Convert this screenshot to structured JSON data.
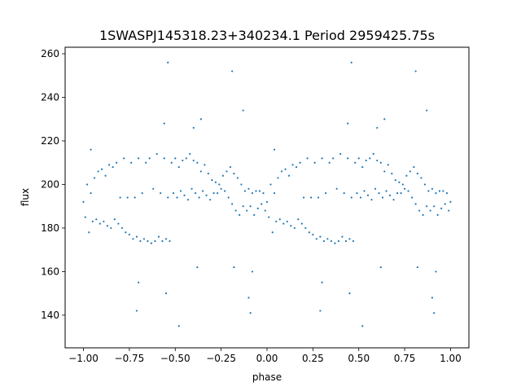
{
  "chart_data": {
    "type": "scatter",
    "title": "1SWASPJ145318.23+340234.1 Period 2959425.75s",
    "xlabel": "phase",
    "ylabel": "flux",
    "xlim": [
      -1.1,
      1.1
    ],
    "ylim": [
      125,
      263
    ],
    "xticks": [
      -1.0,
      -0.75,
      -0.5,
      -0.25,
      0.0,
      0.25,
      0.5,
      0.75,
      1.0
    ],
    "xtick_labels": [
      "−1.00",
      "−0.75",
      "−0.50",
      "−0.25",
      "0.00",
      "0.25",
      "0.50",
      "0.75",
      "1.00"
    ],
    "yticks": [
      140,
      160,
      180,
      200,
      220,
      240,
      260
    ],
    "ytick_labels": [
      "140",
      "160",
      "180",
      "200",
      "220",
      "240",
      "260"
    ],
    "grid": false,
    "legend": "none",
    "point_color": "#1f77b4",
    "series": [
      {
        "values": [
          {
            "x": -1.0,
            "y": 192
          },
          {
            "x": -0.99,
            "y": 185
          },
          {
            "x": -0.98,
            "y": 200
          },
          {
            "x": -0.97,
            "y": 178
          },
          {
            "x": -0.96,
            "y": 196
          },
          {
            "x": -0.95,
            "y": 183
          },
          {
            "x": -0.94,
            "y": 203
          },
          {
            "x": -0.93,
            "y": 184
          },
          {
            "x": -0.92,
            "y": 206
          },
          {
            "x": -0.91,
            "y": 182
          },
          {
            "x": -0.9,
            "y": 207
          },
          {
            "x": -0.89,
            "y": 183
          },
          {
            "x": -0.88,
            "y": 204
          },
          {
            "x": -0.87,
            "y": 181
          },
          {
            "x": -0.86,
            "y": 209
          },
          {
            "x": -0.85,
            "y": 180
          },
          {
            "x": -0.84,
            "y": 208
          },
          {
            "x": -0.83,
            "y": 184
          },
          {
            "x": -0.82,
            "y": 210
          },
          {
            "x": -0.81,
            "y": 182
          },
          {
            "x": -0.8,
            "y": 194
          },
          {
            "x": -0.79,
            "y": 180
          },
          {
            "x": -0.78,
            "y": 212
          },
          {
            "x": -0.77,
            "y": 178
          },
          {
            "x": -0.76,
            "y": 194
          },
          {
            "x": -0.75,
            "y": 177
          },
          {
            "x": -0.74,
            "y": 210
          },
          {
            "x": -0.73,
            "y": 175
          },
          {
            "x": -0.72,
            "y": 194
          },
          {
            "x": -0.71,
            "y": 176
          },
          {
            "x": -0.7,
            "y": 212
          },
          {
            "x": -0.69,
            "y": 174
          },
          {
            "x": -0.68,
            "y": 196
          },
          {
            "x": -0.67,
            "y": 175
          },
          {
            "x": -0.66,
            "y": 210
          },
          {
            "x": -0.65,
            "y": 174
          },
          {
            "x": -0.64,
            "y": 212
          },
          {
            "x": -0.63,
            "y": 173
          },
          {
            "x": -0.62,
            "y": 198
          },
          {
            "x": -0.61,
            "y": 174
          },
          {
            "x": -0.6,
            "y": 214
          },
          {
            "x": -0.59,
            "y": 176
          },
          {
            "x": -0.58,
            "y": 196
          },
          {
            "x": -0.57,
            "y": 174
          },
          {
            "x": -0.56,
            "y": 212
          },
          {
            "x": -0.55,
            "y": 175
          },
          {
            "x": -0.54,
            "y": 194
          },
          {
            "x": -0.53,
            "y": 174
          },
          {
            "x": -0.52,
            "y": 210
          },
          {
            "x": -0.51,
            "y": 196
          },
          {
            "x": -0.5,
            "y": 212
          },
          {
            "x": -0.49,
            "y": 194
          },
          {
            "x": -0.48,
            "y": 208
          },
          {
            "x": -0.47,
            "y": 197
          },
          {
            "x": -0.46,
            "y": 211
          },
          {
            "x": -0.45,
            "y": 195
          },
          {
            "x": -0.44,
            "y": 212
          },
          {
            "x": -0.43,
            "y": 193
          },
          {
            "x": -0.42,
            "y": 214
          },
          {
            "x": -0.41,
            "y": 198
          },
          {
            "x": -0.4,
            "y": 211
          },
          {
            "x": -0.39,
            "y": 196
          },
          {
            "x": -0.38,
            "y": 210
          },
          {
            "x": -0.37,
            "y": 194
          },
          {
            "x": -0.36,
            "y": 206
          },
          {
            "x": -0.35,
            "y": 197
          },
          {
            "x": -0.34,
            "y": 209
          },
          {
            "x": -0.33,
            "y": 195
          },
          {
            "x": -0.32,
            "y": 205
          },
          {
            "x": -0.31,
            "y": 193
          },
          {
            "x": -0.3,
            "y": 202
          },
          {
            "x": -0.29,
            "y": 196
          },
          {
            "x": -0.28,
            "y": 201
          },
          {
            "x": -0.27,
            "y": 196
          },
          {
            "x": -0.26,
            "y": 200
          },
          {
            "x": -0.25,
            "y": 198
          },
          {
            "x": -0.24,
            "y": 204
          },
          {
            "x": -0.23,
            "y": 197
          },
          {
            "x": -0.22,
            "y": 206
          },
          {
            "x": -0.21,
            "y": 194
          },
          {
            "x": -0.2,
            "y": 208
          },
          {
            "x": -0.19,
            "y": 191
          },
          {
            "x": -0.18,
            "y": 205
          },
          {
            "x": -0.17,
            "y": 188
          },
          {
            "x": -0.16,
            "y": 203
          },
          {
            "x": -0.15,
            "y": 186
          },
          {
            "x": -0.14,
            "y": 200
          },
          {
            "x": -0.13,
            "y": 190
          },
          {
            "x": -0.12,
            "y": 197
          },
          {
            "x": -0.11,
            "y": 188
          },
          {
            "x": -0.1,
            "y": 198
          },
          {
            "x": -0.09,
            "y": 190
          },
          {
            "x": -0.08,
            "y": 196
          },
          {
            "x": -0.07,
            "y": 186
          },
          {
            "x": -0.06,
            "y": 197
          },
          {
            "x": -0.05,
            "y": 189
          },
          {
            "x": -0.04,
            "y": 197
          },
          {
            "x": -0.03,
            "y": 191
          },
          {
            "x": -0.02,
            "y": 196
          },
          {
            "x": -0.01,
            "y": 188
          },
          {
            "x": 0.0,
            "y": 192
          },
          {
            "x": 0.01,
            "y": 185
          },
          {
            "x": 0.02,
            "y": 200
          },
          {
            "x": 0.03,
            "y": 178
          },
          {
            "x": 0.04,
            "y": 196
          },
          {
            "x": 0.05,
            "y": 183
          },
          {
            "x": 0.06,
            "y": 203
          },
          {
            "x": 0.07,
            "y": 184
          },
          {
            "x": 0.08,
            "y": 206
          },
          {
            "x": 0.09,
            "y": 182
          },
          {
            "x": 0.1,
            "y": 207
          },
          {
            "x": 0.11,
            "y": 183
          },
          {
            "x": 0.12,
            "y": 204
          },
          {
            "x": 0.13,
            "y": 181
          },
          {
            "x": 0.14,
            "y": 209
          },
          {
            "x": 0.15,
            "y": 180
          },
          {
            "x": 0.16,
            "y": 208
          },
          {
            "x": 0.17,
            "y": 184
          },
          {
            "x": 0.18,
            "y": 210
          },
          {
            "x": 0.19,
            "y": 182
          },
          {
            "x": 0.2,
            "y": 194
          },
          {
            "x": 0.21,
            "y": 180
          },
          {
            "x": 0.22,
            "y": 212
          },
          {
            "x": 0.23,
            "y": 178
          },
          {
            "x": 0.24,
            "y": 194
          },
          {
            "x": 0.25,
            "y": 177
          },
          {
            "x": 0.26,
            "y": 210
          },
          {
            "x": 0.27,
            "y": 175
          },
          {
            "x": 0.28,
            "y": 194
          },
          {
            "x": 0.29,
            "y": 176
          },
          {
            "x": 0.3,
            "y": 212
          },
          {
            "x": 0.31,
            "y": 174
          },
          {
            "x": 0.32,
            "y": 196
          },
          {
            "x": 0.33,
            "y": 175
          },
          {
            "x": 0.34,
            "y": 210
          },
          {
            "x": 0.35,
            "y": 174
          },
          {
            "x": 0.36,
            "y": 212
          },
          {
            "x": 0.37,
            "y": 173
          },
          {
            "x": 0.38,
            "y": 198
          },
          {
            "x": 0.39,
            "y": 174
          },
          {
            "x": 0.4,
            "y": 214
          },
          {
            "x": 0.41,
            "y": 176
          },
          {
            "x": 0.42,
            "y": 196
          },
          {
            "x": 0.43,
            "y": 174
          },
          {
            "x": 0.44,
            "y": 212
          },
          {
            "x": 0.45,
            "y": 175
          },
          {
            "x": 0.46,
            "y": 194
          },
          {
            "x": 0.47,
            "y": 174
          },
          {
            "x": 0.48,
            "y": 210
          },
          {
            "x": 0.49,
            "y": 196
          },
          {
            "x": 0.5,
            "y": 212
          },
          {
            "x": 0.51,
            "y": 194
          },
          {
            "x": 0.52,
            "y": 208
          },
          {
            "x": 0.53,
            "y": 197
          },
          {
            "x": 0.54,
            "y": 211
          },
          {
            "x": 0.55,
            "y": 195
          },
          {
            "x": 0.56,
            "y": 212
          },
          {
            "x": 0.57,
            "y": 193
          },
          {
            "x": 0.58,
            "y": 214
          },
          {
            "x": 0.59,
            "y": 198
          },
          {
            "x": 0.6,
            "y": 211
          },
          {
            "x": 0.61,
            "y": 196
          },
          {
            "x": 0.62,
            "y": 210
          },
          {
            "x": 0.63,
            "y": 194
          },
          {
            "x": 0.64,
            "y": 206
          },
          {
            "x": 0.65,
            "y": 197
          },
          {
            "x": 0.66,
            "y": 209
          },
          {
            "x": 0.67,
            "y": 195
          },
          {
            "x": 0.68,
            "y": 205
          },
          {
            "x": 0.69,
            "y": 193
          },
          {
            "x": 0.7,
            "y": 202
          },
          {
            "x": 0.71,
            "y": 196
          },
          {
            "x": 0.72,
            "y": 201
          },
          {
            "x": 0.73,
            "y": 196
          },
          {
            "x": 0.74,
            "y": 200
          },
          {
            "x": 0.75,
            "y": 198
          },
          {
            "x": 0.76,
            "y": 204
          },
          {
            "x": 0.77,
            "y": 197
          },
          {
            "x": 0.78,
            "y": 206
          },
          {
            "x": 0.79,
            "y": 194
          },
          {
            "x": 0.8,
            "y": 208
          },
          {
            "x": 0.81,
            "y": 191
          },
          {
            "x": 0.82,
            "y": 205
          },
          {
            "x": 0.83,
            "y": 188
          },
          {
            "x": 0.84,
            "y": 203
          },
          {
            "x": 0.85,
            "y": 186
          },
          {
            "x": 0.86,
            "y": 200
          },
          {
            "x": 0.87,
            "y": 190
          },
          {
            "x": 0.88,
            "y": 197
          },
          {
            "x": 0.89,
            "y": 188
          },
          {
            "x": 0.9,
            "y": 198
          },
          {
            "x": 0.91,
            "y": 190
          },
          {
            "x": 0.92,
            "y": 196
          },
          {
            "x": 0.93,
            "y": 186
          },
          {
            "x": 0.94,
            "y": 197
          },
          {
            "x": 0.95,
            "y": 189
          },
          {
            "x": 0.96,
            "y": 197
          },
          {
            "x": 0.97,
            "y": 191
          },
          {
            "x": 0.98,
            "y": 196
          },
          {
            "x": 0.99,
            "y": 188
          },
          {
            "x": 1.0,
            "y": 192
          },
          {
            "x": -0.96,
            "y": 216
          },
          {
            "x": -0.71,
            "y": 142
          },
          {
            "x": -0.7,
            "y": 155
          },
          {
            "x": -0.56,
            "y": 228
          },
          {
            "x": -0.55,
            "y": 150
          },
          {
            "x": -0.54,
            "y": 256
          },
          {
            "x": -0.48,
            "y": 135
          },
          {
            "x": -0.4,
            "y": 226
          },
          {
            "x": -0.38,
            "y": 162
          },
          {
            "x": -0.36,
            "y": 230
          },
          {
            "x": -0.19,
            "y": 252
          },
          {
            "x": -0.18,
            "y": 162
          },
          {
            "x": -0.13,
            "y": 234
          },
          {
            "x": -0.1,
            "y": 148
          },
          {
            "x": -0.09,
            "y": 141
          },
          {
            "x": -0.08,
            "y": 160
          },
          {
            "x": 0.04,
            "y": 216
          },
          {
            "x": 0.29,
            "y": 142
          },
          {
            "x": 0.3,
            "y": 155
          },
          {
            "x": 0.44,
            "y": 228
          },
          {
            "x": 0.45,
            "y": 150
          },
          {
            "x": 0.46,
            "y": 256
          },
          {
            "x": 0.52,
            "y": 135
          },
          {
            "x": 0.6,
            "y": 226
          },
          {
            "x": 0.62,
            "y": 162
          },
          {
            "x": 0.64,
            "y": 230
          },
          {
            "x": 0.81,
            "y": 252
          },
          {
            "x": 0.82,
            "y": 162
          },
          {
            "x": 0.87,
            "y": 234
          },
          {
            "x": 0.9,
            "y": 148
          },
          {
            "x": 0.91,
            "y": 141
          },
          {
            "x": 0.92,
            "y": 160
          }
        ]
      }
    ]
  }
}
